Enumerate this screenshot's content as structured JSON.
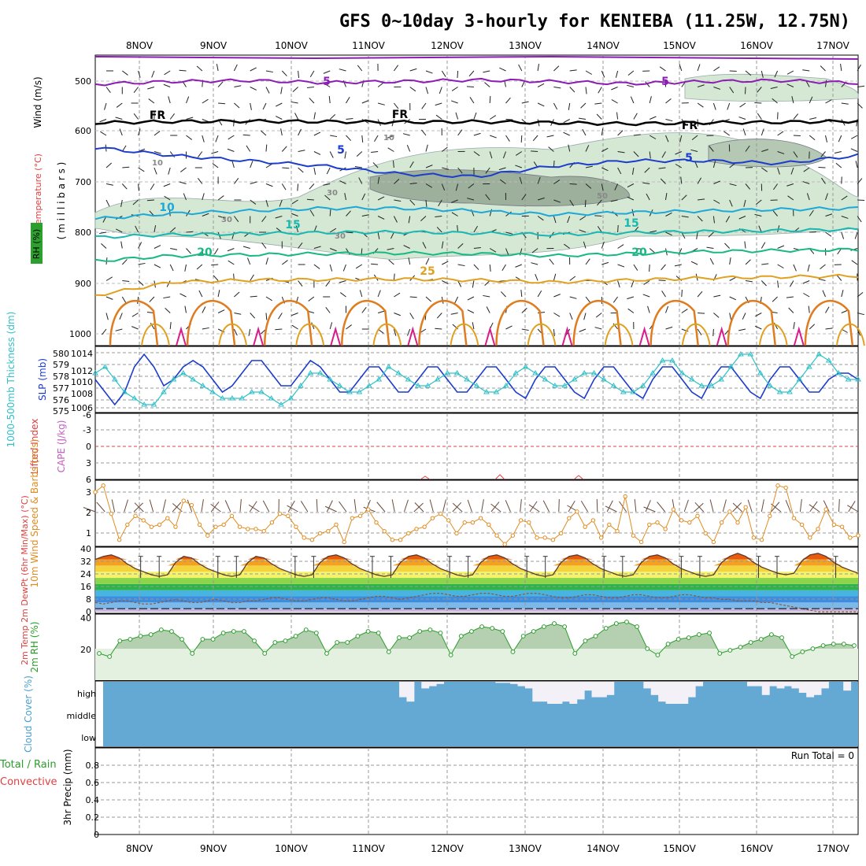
{
  "title": "GFS 0~10day 3-hourly for KENIEBA (11.25W, 12.75N)",
  "colors": {
    "purple": "#8c1cb4",
    "blue": "#1c3ccc",
    "sky": "#1ca8d8",
    "teal": "#18b8b0",
    "green": "#18b884",
    "orange": "#e0a020",
    "darkorange": "#e07c20",
    "magenta": "#d81c8c",
    "rh_fill": "#d4e8d4",
    "cloud": "#64a8d4",
    "pressure_line": "#1c3ccc",
    "thickness_line": "#30c0c8",
    "wind_line": "#e08c20",
    "rh2m_line": "#2c9c2c"
  },
  "chart_data": [
    {
      "panel": "upper-air",
      "type": "contour",
      "ylabel_wind": "Wind (m/s)",
      "ylabel_temp": "Temperature (°C)",
      "ylabel_rh": "RH (%)",
      "ylabel_units": "( m i l l i b a r s )",
      "yticks": [
        "500",
        "600",
        "700",
        "800",
        "900",
        "1000"
      ],
      "ylim": [
        450,
        1000
      ],
      "contour_labels": [
        "5",
        "5",
        "FR",
        "FR",
        "FR",
        "5",
        "5",
        "10",
        "15",
        "15",
        "20",
        "20",
        "25",
        "10",
        "10",
        "30",
        "30",
        "30",
        "50"
      ],
      "isotherms": [
        {
          "label": "-5",
          "p": [
            505,
            500,
            498,
            502,
            500,
            497,
            500,
            504,
            500,
            498,
            503
          ]
        },
        {
          "label": "0",
          "p": [
            578,
            576,
            575,
            576,
            577,
            576,
            578,
            580,
            578,
            577,
            575
          ]
        },
        {
          "label": "5",
          "p": [
            625,
            640,
            650,
            660,
            675,
            680,
            660,
            650,
            650,
            655,
            640
          ]
        },
        {
          "label": "10",
          "p": [
            760,
            750,
            745,
            740,
            740,
            745,
            752,
            748,
            745,
            742,
            740
          ]
        },
        {
          "label": "15",
          "p": [
            795,
            790,
            788,
            786,
            785,
            787,
            790,
            786,
            784,
            782,
            780
          ]
        },
        {
          "label": "20",
          "p": [
            840,
            830,
            828,
            826,
            825,
            826,
            830,
            826,
            822,
            820,
            818
          ]
        },
        {
          "label": "25",
          "p": [
            905,
            880,
            876,
            875,
            874,
            876,
            880,
            876,
            872,
            870,
            868
          ]
        }
      ]
    },
    {
      "panel": "pressure-thickness",
      "type": "line",
      "ylabel_left": "1000-500mb Thickness (dm)",
      "ylabel_right": "SLP (mb)",
      "yticks_left": [
        "580",
        "579",
        "578",
        "577",
        "576",
        "575"
      ],
      "yticks_right": [
        "1014",
        "1012",
        "1010",
        "1008",
        "1006"
      ],
      "series": [
        {
          "values": [
            1010,
            1008,
            1006,
            1008,
            1012,
            1014,
            1012,
            1009,
            1010,
            1012,
            1013,
            1012,
            1010,
            1008,
            1009,
            1011,
            1013,
            1013,
            1011,
            1009,
            1009,
            1011,
            1013,
            1012,
            1010,
            1008,
            1008,
            1010,
            1012,
            1012,
            1010,
            1008,
            1008,
            1010,
            1012,
            1012,
            1010,
            1008,
            1008,
            1010,
            1012,
            1012,
            1010,
            1008,
            1007,
            1010,
            1012,
            1012,
            1010,
            1008,
            1007,
            1010,
            1012,
            1012,
            1010,
            1008,
            1007,
            1010,
            1012,
            1012,
            1010,
            1008,
            1007,
            1010,
            1012,
            1012,
            1010,
            1008,
            1007,
            1010,
            1012,
            1012,
            1010,
            1008,
            1008,
            1010,
            1011,
            1011,
            1010
          ]
        },
        {
          "values": [
            1011,
            1012,
            1010,
            1008,
            1007,
            1006,
            1006,
            1008,
            1010,
            1011,
            1010,
            1009,
            1008,
            1007,
            1007,
            1007,
            1008,
            1008,
            1007,
            1006,
            1007,
            1009,
            1011,
            1011,
            1010,
            1009,
            1008,
            1008,
            1009,
            1010,
            1012,
            1011,
            1010,
            1009,
            1009,
            1010,
            1011,
            1011,
            1010,
            1009,
            1008,
            1008,
            1009,
            1011,
            1012,
            1011,
            1010,
            1009,
            1009,
            1010,
            1011,
            1011,
            1010,
            1009,
            1008,
            1008,
            1009,
            1011,
            1013,
            1013,
            1011,
            1010,
            1009,
            1009,
            1010,
            1012,
            1014,
            1014,
            1011,
            1009,
            1008,
            1008,
            1010,
            1012,
            1014,
            1013,
            1011,
            1010,
            1010
          ]
        }
      ]
    },
    {
      "panel": "stability",
      "type": "line",
      "ylabel_left": "Lifted Index",
      "ylabel_right": "CAPE (J/kg)",
      "yticks": [
        "-6",
        "-3",
        "0",
        "3",
        "6"
      ],
      "ylim": [
        -6,
        6
      ]
    },
    {
      "panel": "wind-10m",
      "type": "line",
      "ylabel": "10m Wind Speed & Barbs (m/s)",
      "yticks": [
        "3",
        "2",
        "1"
      ],
      "ylim": [
        0.5,
        3.4
      ],
      "values": [
        3.0,
        3.3,
        2.0,
        0.8,
        1.5,
        1.9,
        1.7,
        1.4,
        1.5,
        1.8,
        1.4,
        2.6,
        2.4,
        1.5,
        1.0,
        1.4,
        1.5,
        1.9,
        1.4,
        1.3,
        1.3,
        1.2,
        1.6,
        2.0,
        1.9,
        1.4,
        0.9,
        0.8,
        1.1,
        1.2,
        1.5,
        0.7,
        1.8,
        1.9,
        2.2,
        1.6,
        1.2,
        0.8,
        0.8,
        1.1,
        1.3,
        1.4,
        1.8,
        2.0,
        1.7,
        1.1,
        1.6,
        1.6,
        1.8,
        1.5,
        1.0,
        0.6,
        1.0,
        1.7,
        1.6,
        0.9,
        0.9,
        0.8,
        1.1,
        1.8,
        2.1,
        1.4,
        1.7,
        0.9,
        1.5,
        1.2,
        2.8,
        1.0,
        0.7,
        1.5,
        1.6,
        1.3,
        2.2,
        1.7,
        1.6,
        1.9,
        1.1,
        0.7,
        1.6,
        2.1,
        1.6,
        2.3,
        0.9,
        0.8,
        1.9,
        3.3,
        3.2,
        1.8,
        1.5,
        0.9,
        1.3,
        2.2,
        1.5,
        1.4,
        0.9,
        1.0
      ]
    },
    {
      "panel": "temperature-2m",
      "type": "area",
      "ylabel": "2m Temp 2m DewPt (6hr Min/Max) (°C)",
      "yticks": [
        "40",
        "32",
        "24",
        "16",
        "8",
        "0"
      ],
      "ylim": [
        -2,
        40
      ],
      "temp": [
        32,
        34,
        35,
        33,
        29,
        26,
        24,
        22,
        21,
        22,
        30,
        34,
        33,
        29,
        26,
        24,
        22,
        21,
        22,
        30,
        34,
        33,
        29,
        26,
        24,
        22,
        21,
        22,
        30,
        34,
        35,
        33,
        29,
        26,
        24,
        22,
        21,
        22,
        30,
        34,
        35,
        33,
        29,
        26,
        24,
        22,
        21,
        22,
        30,
        34,
        35,
        33,
        29,
        26,
        24,
        22,
        21,
        22,
        30,
        34,
        35,
        33,
        29,
        26,
        24,
        22,
        21,
        22,
        30,
        34,
        35,
        33,
        29,
        26,
        24,
        22,
        21,
        22,
        30,
        34,
        36,
        34,
        30,
        27,
        25,
        23,
        22,
        23,
        31,
        35,
        36,
        34,
        30,
        27,
        25,
        23
      ],
      "dewpt": [
        4,
        3,
        4,
        5,
        5,
        4,
        3,
        3,
        4,
        5,
        6,
        5,
        4,
        4,
        5,
        6,
        5,
        4,
        4,
        5,
        5,
        6,
        7,
        7,
        6,
        5,
        5,
        6,
        7,
        7,
        6,
        5,
        5,
        6,
        7,
        8,
        8,
        7,
        6,
        7,
        8,
        9,
        10,
        10,
        9,
        8,
        8,
        9,
        10,
        10,
        9,
        8,
        8,
        9,
        10,
        10,
        9,
        8,
        7,
        7,
        8,
        9,
        9,
        8,
        7,
        7,
        8,
        9,
        9,
        8,
        7,
        7,
        8,
        9,
        9,
        8,
        7,
        7,
        6,
        6,
        5,
        5,
        5,
        4,
        4,
        3,
        2,
        1,
        0,
        -1,
        -2,
        -2,
        -2,
        -2,
        -2,
        -2
      ]
    },
    {
      "panel": "rh-2m",
      "type": "line",
      "ylabel": "2m RH (%)",
      "yticks": [
        "40",
        "20"
      ],
      "ylim": [
        0,
        40
      ],
      "values": [
        17,
        15,
        25,
        26,
        28,
        29,
        32,
        31,
        26,
        17,
        26,
        26,
        30,
        31,
        31,
        25,
        17,
        24,
        25,
        28,
        32,
        30,
        17,
        24,
        24,
        28,
        31,
        30,
        18,
        27,
        27,
        31,
        32,
        30,
        16,
        28,
        31,
        34,
        33,
        31,
        18,
        28,
        31,
        34,
        36,
        34,
        17,
        25,
        28,
        33,
        36,
        37,
        34,
        20,
        16,
        23,
        26,
        27,
        29,
        30,
        17,
        19,
        21,
        24,
        26,
        29,
        27,
        15,
        18,
        20,
        22,
        23,
        23,
        22
      ]
    },
    {
      "panel": "cloud-cover",
      "type": "bar",
      "ylabel": "Cloud Cover (%)",
      "yticks": [
        "high",
        "middle",
        "low"
      ],
      "high": [
        100,
        100,
        100,
        100,
        100,
        100,
        100,
        100,
        100,
        100,
        100,
        100,
        100,
        100,
        100,
        100,
        100,
        100,
        100,
        100,
        100,
        100,
        100,
        100,
        100,
        100,
        100,
        100,
        100,
        100,
        100,
        100,
        100,
        100,
        100,
        100,
        100,
        100,
        100,
        100,
        30,
        10,
        100,
        70,
        80,
        90,
        100,
        100,
        100,
        100,
        100,
        100,
        100,
        95,
        95,
        90,
        80,
        70,
        10,
        10,
        0,
        0,
        10,
        0,
        20,
        60,
        30,
        30,
        40,
        100,
        100,
        100,
        100,
        70,
        40,
        10,
        0,
        0,
        0,
        30,
        80,
        100,
        100,
        100,
        100,
        100,
        100,
        80,
        80,
        40,
        80,
        70,
        80,
        70,
        50,
        30,
        40,
        70,
        100,
        100,
        60,
        100
      ]
    },
    {
      "panel": "precip",
      "type": "bar",
      "ylabel_left": "Total / Rain",
      "ylabel_left2": "Convective",
      "ylabel": "3hr Precip (mm)",
      "yticks": [
        "0.8",
        "0.6",
        "0.4",
        "0.2",
        "0"
      ],
      "ylim": [
        0,
        0.9
      ],
      "run_total_label": "Run Total = 0",
      "values": []
    }
  ],
  "dates": [
    "8NOV",
    "9NOV",
    "10NOV",
    "11NOV",
    "12NOV",
    "13NOV",
    "14NOV",
    "15NOV",
    "16NOV",
    "17NOV"
  ]
}
